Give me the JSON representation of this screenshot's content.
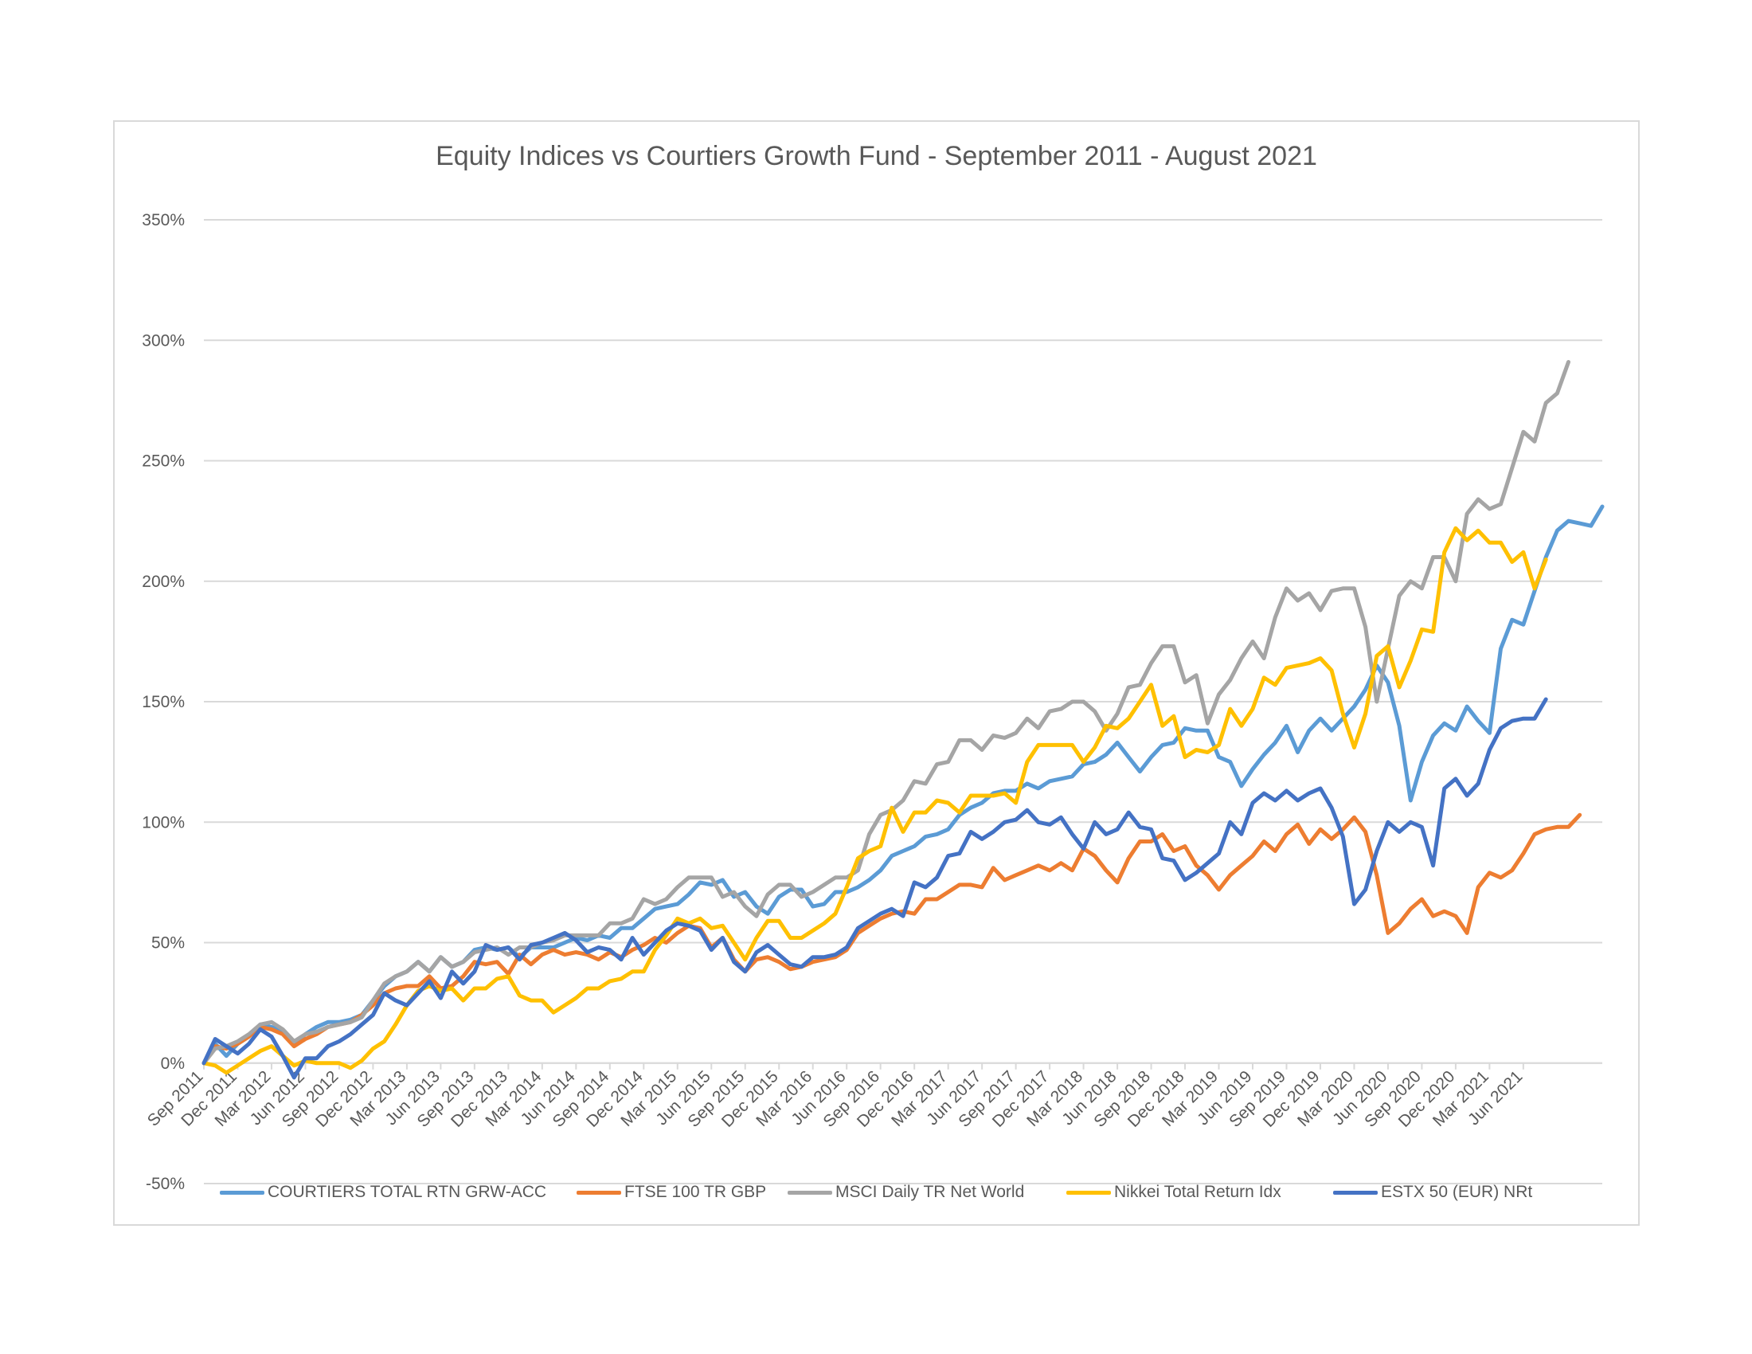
{
  "chart_data": {
    "type": "line",
    "title": "Equity Indices vs Courtiers Growth Fund - September 2011 - August 2021",
    "xlabel": "",
    "ylabel": "",
    "ylim": [
      -50,
      350
    ],
    "yticks": [
      -50,
      0,
      50,
      100,
      150,
      200,
      250,
      300,
      350
    ],
    "ytick_labels": [
      "-50%",
      "0%",
      "50%",
      "100%",
      "150%",
      "200%",
      "250%",
      "300%",
      "350%"
    ],
    "grid": "horizontal",
    "legend_position": "bottom",
    "x_start": "Sep 2011",
    "x_end": "Aug 2021",
    "x_tick_labels": [
      "Sep 2011",
      "Dec 2011",
      "Mar 2012",
      "Jun 2012",
      "Sep 2012",
      "Dec 2012",
      "Mar 2013",
      "Jun 2013",
      "Sep 2013",
      "Dec 2013",
      "Mar 2014",
      "Jun 2014",
      "Sep 2014",
      "Dec 2014",
      "Mar 2015",
      "Jun 2015",
      "Sep 2015",
      "Dec 2015",
      "Mar 2016",
      "Jun 2016",
      "Sep 2016",
      "Dec 2016",
      "Mar 2017",
      "Jun 2017",
      "Sep 2017",
      "Dec 2017",
      "Mar 2018",
      "Jun 2018",
      "Sep 2018",
      "Dec 2018",
      "Mar 2019",
      "Jun 2019",
      "Sep 2019",
      "Dec 2019",
      "Mar 2020",
      "Jun 2020",
      "Sep 2020",
      "Dec 2020",
      "Mar 2021",
      "Jun 2021"
    ],
    "series": [
      {
        "name": "COURTIERS TOTAL RTN GRW-ACC",
        "color": "#5b9bd5",
        "values": [
          0,
          8,
          3,
          8,
          11,
          16,
          15,
          13,
          8,
          12,
          15,
          17,
          17,
          18,
          20,
          26,
          32,
          36,
          38,
          42,
          38,
          44,
          40,
          42,
          47,
          48,
          47,
          48,
          44,
          48,
          48,
          48,
          50,
          52,
          51,
          53,
          52,
          56,
          56,
          60,
          64,
          65,
          66,
          70,
          75,
          74,
          76,
          69,
          71,
          65,
          62,
          69,
          72,
          72,
          65,
          66,
          71,
          71,
          73,
          76,
          80,
          86,
          88,
          90,
          94,
          95,
          97,
          103,
          106,
          108,
          112,
          113,
          113,
          116,
          114,
          117,
          118,
          119,
          124,
          125,
          128,
          133,
          127,
          121,
          127,
          132,
          133,
          139,
          138,
          138,
          127,
          125,
          115,
          122,
          128,
          133,
          140,
          129,
          138,
          143,
          138,
          143,
          148,
          155,
          165,
          158,
          140,
          109,
          125,
          136,
          141,
          138,
          148,
          142,
          137,
          172,
          184,
          182,
          196,
          210,
          221,
          225,
          224,
          223,
          231
        ]
      },
      {
        "name": "FTSE 100 TR GBP",
        "color": "#ed7d31",
        "values": [
          0,
          7,
          6,
          8,
          11,
          15,
          14,
          12,
          7,
          10,
          12,
          15,
          16,
          17,
          20,
          24,
          29,
          31,
          32,
          32,
          36,
          31,
          32,
          36,
          42,
          41,
          42,
          37,
          45,
          41,
          45,
          47,
          45,
          46,
          45,
          43,
          46,
          44,
          47,
          49,
          52,
          50,
          54,
          57,
          56,
          48,
          52,
          43,
          38,
          43,
          44,
          42,
          39,
          40,
          42,
          43,
          44,
          47,
          54,
          57,
          60,
          62,
          63,
          62,
          68,
          68,
          71,
          74,
          74,
          73,
          81,
          76,
          78,
          80,
          82,
          80,
          83,
          80,
          89,
          86,
          80,
          75,
          85,
          92,
          92,
          95,
          88,
          90,
          82,
          78,
          72,
          78,
          82,
          86,
          92,
          88,
          95,
          99,
          91,
          97,
          93,
          97,
          102,
          96,
          78,
          54,
          58,
          64,
          68,
          61,
          63,
          61,
          54,
          73,
          79,
          77,
          80,
          87,
          95,
          97,
          98,
          98,
          103
        ]
      },
      {
        "name": "MSCI Daily TR Net World",
        "color": "#a5a5a5",
        "values": [
          0,
          6,
          7,
          9,
          12,
          16,
          17,
          14,
          9,
          12,
          13,
          15,
          16,
          17,
          19,
          26,
          33,
          36,
          38,
          42,
          38,
          44,
          40,
          42,
          46,
          47,
          48,
          45,
          48,
          48,
          50,
          51,
          53,
          53,
          53,
          53,
          58,
          58,
          60,
          68,
          66,
          68,
          73,
          77,
          77,
          77,
          69,
          71,
          65,
          61,
          70,
          74,
          74,
          69,
          71,
          74,
          77,
          77,
          80,
          95,
          103,
          105,
          109,
          117,
          116,
          124,
          125,
          134,
          134,
          130,
          136,
          135,
          137,
          143,
          139,
          146,
          147,
          150,
          150,
          146,
          138,
          145,
          156,
          157,
          166,
          173,
          173,
          158,
          161,
          141,
          153,
          159,
          168,
          175,
          168,
          185,
          197,
          192,
          195,
          188,
          196,
          197,
          197,
          181,
          150,
          172,
          194,
          200,
          197,
          210,
          210,
          200,
          228,
          234,
          230,
          232,
          247,
          262,
          258,
          274,
          278,
          291
        ]
      },
      {
        "name": "Nikkei Total Return Idx",
        "color": "#ffc000",
        "values": [
          0,
          -1,
          -4,
          -1,
          2,
          5,
          7,
          3,
          -1,
          1,
          0,
          0,
          0,
          -2,
          1,
          6,
          9,
          16,
          24,
          30,
          32,
          30,
          31,
          26,
          31,
          31,
          35,
          36,
          28,
          26,
          26,
          21,
          24,
          27,
          31,
          31,
          34,
          35,
          38,
          38,
          47,
          53,
          60,
          58,
          60,
          56,
          57,
          50,
          43,
          52,
          59,
          59,
          52,
          52,
          55,
          58,
          62,
          73,
          85,
          88,
          90,
          106,
          96,
          104,
          104,
          109,
          108,
          104,
          111,
          111,
          111,
          112,
          108,
          125,
          132,
          132,
          132,
          132,
          125,
          131,
          140,
          139,
          143,
          150,
          157,
          140,
          144,
          127,
          130,
          129,
          132,
          147,
          140,
          147,
          160,
          157,
          164,
          165,
          166,
          168,
          163,
          145,
          131,
          145,
          169,
          173,
          156,
          167,
          180,
          179,
          212,
          222,
          217,
          221,
          216,
          216,
          208,
          212,
          197,
          209
        ]
      },
      {
        "name": "ESTX 50 (EUR) NRt",
        "color": "#4472c4",
        "values": [
          0,
          10,
          7,
          4,
          8,
          14,
          11,
          3,
          -6,
          2,
          2,
          7,
          9,
          12,
          16,
          20,
          29,
          26,
          24,
          29,
          34,
          27,
          38,
          33,
          38,
          49,
          47,
          48,
          43,
          49,
          50,
          52,
          54,
          51,
          46,
          48,
          47,
          43,
          52,
          45,
          50,
          55,
          58,
          57,
          55,
          47,
          52,
          42,
          38,
          46,
          49,
          45,
          41,
          40,
          44,
          44,
          45,
          48,
          56,
          59,
          62,
          64,
          61,
          75,
          73,
          77,
          86,
          87,
          96,
          93,
          96,
          100,
          101,
          105,
          100,
          99,
          102,
          95,
          89,
          100,
          95,
          97,
          104,
          98,
          97,
          85,
          84,
          76,
          79,
          83,
          87,
          100,
          95,
          108,
          112,
          109,
          113,
          109,
          112,
          114,
          106,
          94,
          66,
          72,
          88,
          100,
          96,
          100,
          98,
          82,
          114,
          118,
          111,
          116,
          130,
          139,
          142,
          143,
          143,
          151
        ]
      }
    ]
  }
}
